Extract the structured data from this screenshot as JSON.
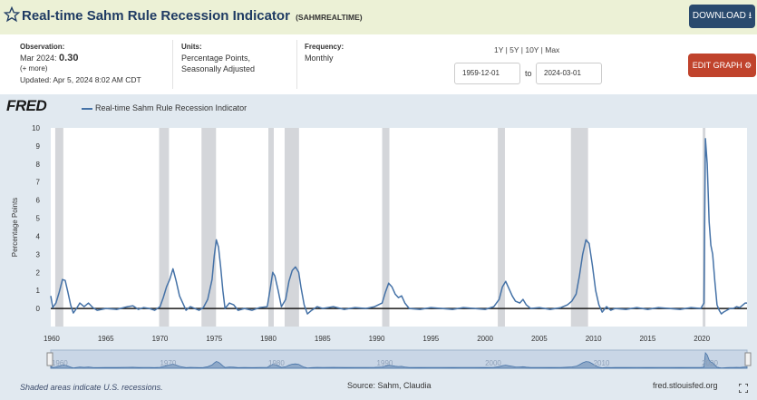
{
  "header": {
    "title": "Real-time Sahm Rule Recession Indicator",
    "series_id": "(SAHMREALTIME)",
    "download_label": "DOWNLOAD"
  },
  "meta": {
    "observation_label": "Observation:",
    "observation_date": "Mar 2024:",
    "observation_value": "0.30",
    "more": "(+ more)",
    "updated": "Updated: Apr 5, 2024 8:02 AM CDT",
    "units_label": "Units:",
    "units_line1": "Percentage Points,",
    "units_line2": "Seasonally Adjusted",
    "frequency_label": "Frequency:",
    "frequency": "Monthly",
    "ranges": "1Y | 5Y | 10Y | Max",
    "start_date": "1959-12-01",
    "to_label": "to",
    "end_date": "2024-03-01",
    "edit_label": "EDIT GRAPH"
  },
  "logo": "FRED",
  "legend": "Real-time Sahm Rule Recession Indicator",
  "footer": {
    "note": "Shaded areas indicate U.S. recessions.",
    "source": "Source: Sahm, Claudia",
    "site": "fred.stlouisfed.org"
  },
  "colors": {
    "line": "#4572a7",
    "recession": "#d4d6da",
    "header_bg": "#ecf1d6",
    "download_bg": "#2a4a6e",
    "edit_bg": "#c0432c"
  },
  "chart_data": {
    "type": "line",
    "title": "Real-time Sahm Rule Recession Indicator",
    "xlabel": "",
    "ylabel": "Percentage Points",
    "xlim": [
      1959.92,
      2024.17
    ],
    "ylim": [
      -1,
      10
    ],
    "yticks": [
      -1,
      0,
      1,
      2,
      3,
      4,
      5,
      6,
      7,
      8,
      9,
      10
    ],
    "ytick_labels": [
      "",
      "0",
      "1",
      "2",
      "3",
      "4",
      "5",
      "6",
      "7",
      "8",
      "9",
      "10"
    ],
    "xticks": [
      "1960",
      "1965",
      "1970",
      "1975",
      "1980",
      "1985",
      "1990",
      "1995",
      "2000",
      "2005",
      "2010",
      "2015",
      "2020"
    ],
    "navigator_ticks": [
      "1960",
      "1970",
      "1980",
      "1990",
      "2000",
      "2010",
      "2020"
    ],
    "recessions": [
      [
        1960.33,
        1961.08
      ],
      [
        1969.92,
        1970.83
      ],
      [
        1973.83,
        1975.17
      ],
      [
        1980.0,
        1980.5
      ],
      [
        1981.5,
        1982.83
      ],
      [
        1990.5,
        1991.17
      ],
      [
        2001.17,
        2001.83
      ],
      [
        2007.92,
        2009.5
      ],
      [
        2020.08,
        2020.33
      ]
    ],
    "series": [
      {
        "name": "Real-time Sahm Rule Recession Indicator",
        "points": [
          [
            1959.92,
            0.7
          ],
          [
            1960.1,
            0.05
          ],
          [
            1960.4,
            0.3
          ],
          [
            1960.7,
            0.9
          ],
          [
            1961.0,
            1.6
          ],
          [
            1961.25,
            1.55
          ],
          [
            1961.5,
            0.9
          ],
          [
            1961.75,
            0.2
          ],
          [
            1962.0,
            -0.25
          ],
          [
            1962.3,
            0.0
          ],
          [
            1962.6,
            0.3
          ],
          [
            1963.0,
            0.1
          ],
          [
            1963.4,
            0.3
          ],
          [
            1963.8,
            0.05
          ],
          [
            1964.2,
            -0.1
          ],
          [
            1965.0,
            0.0
          ],
          [
            1966.0,
            -0.05
          ],
          [
            1967.0,
            0.1
          ],
          [
            1967.5,
            0.15
          ],
          [
            1968.0,
            -0.05
          ],
          [
            1968.5,
            0.05
          ],
          [
            1969.0,
            0.0
          ],
          [
            1969.5,
            -0.1
          ],
          [
            1970.0,
            0.1
          ],
          [
            1970.3,
            0.6
          ],
          [
            1970.6,
            1.2
          ],
          [
            1970.9,
            1.6
          ],
          [
            1971.2,
            2.2
          ],
          [
            1971.5,
            1.5
          ],
          [
            1971.8,
            0.7
          ],
          [
            1972.1,
            0.3
          ],
          [
            1972.4,
            -0.1
          ],
          [
            1972.8,
            0.1
          ],
          [
            1973.2,
            0.0
          ],
          [
            1973.6,
            -0.1
          ],
          [
            1974.0,
            0.05
          ],
          [
            1974.4,
            0.5
          ],
          [
            1974.8,
            1.6
          ],
          [
            1975.0,
            2.9
          ],
          [
            1975.2,
            3.8
          ],
          [
            1975.4,
            3.4
          ],
          [
            1975.6,
            2.3
          ],
          [
            1975.8,
            1.0
          ],
          [
            1976.0,
            0.0
          ],
          [
            1976.4,
            0.3
          ],
          [
            1976.8,
            0.2
          ],
          [
            1977.2,
            -0.1
          ],
          [
            1977.8,
            0.0
          ],
          [
            1978.5,
            -0.1
          ],
          [
            1979.2,
            0.05
          ],
          [
            1979.9,
            0.1
          ],
          [
            1980.2,
            1.2
          ],
          [
            1980.4,
            2.0
          ],
          [
            1980.6,
            1.8
          ],
          [
            1980.9,
            1.0
          ],
          [
            1981.2,
            0.1
          ],
          [
            1981.6,
            0.5
          ],
          [
            1981.9,
            1.5
          ],
          [
            1982.2,
            2.1
          ],
          [
            1982.5,
            2.3
          ],
          [
            1982.8,
            2.0
          ],
          [
            1983.0,
            1.2
          ],
          [
            1983.3,
            0.2
          ],
          [
            1983.6,
            -0.3
          ],
          [
            1984.0,
            -0.1
          ],
          [
            1984.5,
            0.1
          ],
          [
            1985.0,
            0.0
          ],
          [
            1986.0,
            0.1
          ],
          [
            1987.0,
            -0.05
          ],
          [
            1988.0,
            0.05
          ],
          [
            1989.0,
            0.0
          ],
          [
            1989.8,
            0.1
          ],
          [
            1990.5,
            0.3
          ],
          [
            1990.8,
            0.9
          ],
          [
            1991.1,
            1.4
          ],
          [
            1991.4,
            1.2
          ],
          [
            1991.7,
            0.8
          ],
          [
            1992.0,
            0.6
          ],
          [
            1992.3,
            0.7
          ],
          [
            1992.6,
            0.3
          ],
          [
            1993.0,
            0.0
          ],
          [
            1994.0,
            -0.05
          ],
          [
            1995.0,
            0.05
          ],
          [
            1996.0,
            0.0
          ],
          [
            1997.0,
            -0.05
          ],
          [
            1998.0,
            0.05
          ],
          [
            1999.0,
            0.0
          ],
          [
            2000.0,
            -0.05
          ],
          [
            2000.8,
            0.1
          ],
          [
            2001.3,
            0.5
          ],
          [
            2001.6,
            1.2
          ],
          [
            2001.9,
            1.5
          ],
          [
            2002.2,
            1.1
          ],
          [
            2002.5,
            0.7
          ],
          [
            2002.8,
            0.4
          ],
          [
            2003.2,
            0.3
          ],
          [
            2003.5,
            0.5
          ],
          [
            2003.8,
            0.2
          ],
          [
            2004.2,
            0.0
          ],
          [
            2005.0,
            0.05
          ],
          [
            2006.0,
            -0.05
          ],
          [
            2007.0,
            0.05
          ],
          [
            2007.6,
            0.2
          ],
          [
            2008.0,
            0.4
          ],
          [
            2008.4,
            0.8
          ],
          [
            2008.7,
            1.8
          ],
          [
            2009.0,
            3.0
          ],
          [
            2009.3,
            3.8
          ],
          [
            2009.6,
            3.6
          ],
          [
            2009.9,
            2.4
          ],
          [
            2010.2,
            1.0
          ],
          [
            2010.5,
            0.2
          ],
          [
            2010.8,
            -0.2
          ],
          [
            2011.2,
            0.1
          ],
          [
            2011.6,
            -0.1
          ],
          [
            2012.0,
            0.0
          ],
          [
            2013.0,
            -0.05
          ],
          [
            2014.0,
            0.05
          ],
          [
            2015.0,
            -0.05
          ],
          [
            2016.0,
            0.05
          ],
          [
            2017.0,
            0.0
          ],
          [
            2018.0,
            -0.05
          ],
          [
            2019.0,
            0.05
          ],
          [
            2019.9,
            0.0
          ],
          [
            2020.2,
            0.3
          ],
          [
            2020.33,
            9.4
          ],
          [
            2020.5,
            8.0
          ],
          [
            2020.67,
            4.8
          ],
          [
            2020.83,
            3.5
          ],
          [
            2021.0,
            3.0
          ],
          [
            2021.2,
            1.5
          ],
          [
            2021.4,
            0.2
          ],
          [
            2021.6,
            -0.1
          ],
          [
            2021.8,
            -0.3
          ],
          [
            2022.0,
            -0.2
          ],
          [
            2022.3,
            -0.1
          ],
          [
            2022.6,
            0.0
          ],
          [
            2022.9,
            0.0
          ],
          [
            2023.2,
            0.1
          ],
          [
            2023.5,
            0.05
          ],
          [
            2023.8,
            0.2
          ],
          [
            2024.0,
            0.3
          ],
          [
            2024.17,
            0.3
          ]
        ]
      }
    ]
  }
}
